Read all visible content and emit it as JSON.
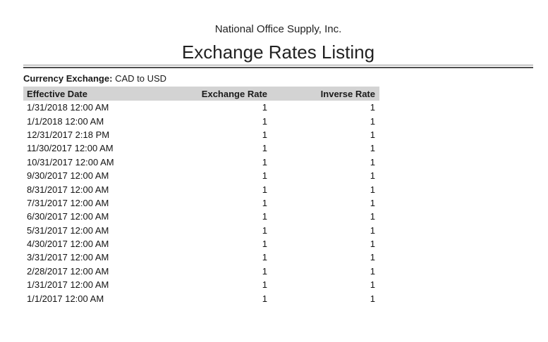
{
  "report": {
    "company_name": "National Office Supply, Inc.",
    "title": "Exchange Rates Listing",
    "filter": {
      "label": "Currency Exchange:",
      "value": "CAD to USD"
    }
  },
  "table": {
    "columns": [
      "Effective Date",
      "Exchange Rate",
      "Inverse Rate"
    ],
    "rows": [
      {
        "effective_date": "1/31/2018 12:00 AM",
        "exchange_rate": "1",
        "inverse_rate": "1"
      },
      {
        "effective_date": "1/1/2018 12:00 AM",
        "exchange_rate": "1",
        "inverse_rate": "1"
      },
      {
        "effective_date": "12/31/2017 2:18 PM",
        "exchange_rate": "1",
        "inverse_rate": "1"
      },
      {
        "effective_date": "11/30/2017 12:00 AM",
        "exchange_rate": "1",
        "inverse_rate": "1"
      },
      {
        "effective_date": "10/31/2017 12:00 AM",
        "exchange_rate": "1",
        "inverse_rate": "1"
      },
      {
        "effective_date": "9/30/2017 12:00 AM",
        "exchange_rate": "1",
        "inverse_rate": "1"
      },
      {
        "effective_date": "8/31/2017 12:00 AM",
        "exchange_rate": "1",
        "inverse_rate": "1"
      },
      {
        "effective_date": "7/31/2017 12:00 AM",
        "exchange_rate": "1",
        "inverse_rate": "1"
      },
      {
        "effective_date": "6/30/2017 12:00 AM",
        "exchange_rate": "1",
        "inverse_rate": "1"
      },
      {
        "effective_date": "5/31/2017 12:00 AM",
        "exchange_rate": "1",
        "inverse_rate": "1"
      },
      {
        "effective_date": "4/30/2017 12:00 AM",
        "exchange_rate": "1",
        "inverse_rate": "1"
      },
      {
        "effective_date": "3/31/2017 12:00 AM",
        "exchange_rate": "1",
        "inverse_rate": "1"
      },
      {
        "effective_date": "2/28/2017 12:00 AM",
        "exchange_rate": "1",
        "inverse_rate": "1"
      },
      {
        "effective_date": "1/31/2017 12:00 AM",
        "exchange_rate": "1",
        "inverse_rate": "1"
      },
      {
        "effective_date": "1/1/2017 12:00 AM",
        "exchange_rate": "1",
        "inverse_rate": "1"
      }
    ]
  },
  "colors": {
    "header_background": "#d3d3d3",
    "rule_top": "#949494",
    "rule_bottom": "#4f4f4f",
    "text": "#1a1a1a"
  }
}
